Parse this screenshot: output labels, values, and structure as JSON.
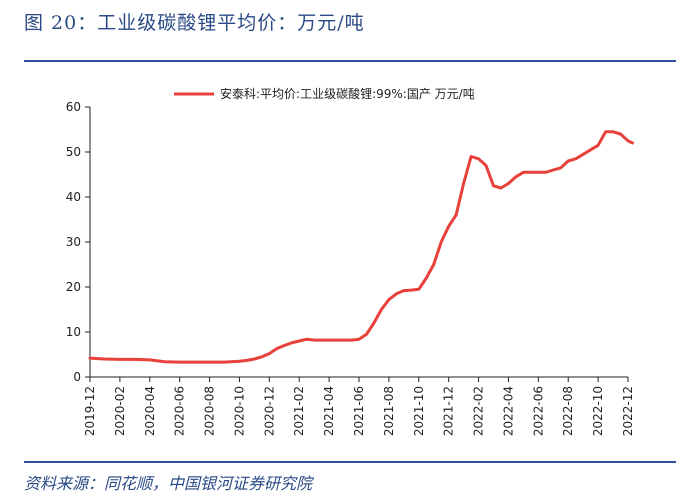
{
  "figure": {
    "title": "图 20：工业级碳酸锂平均价：万元/吨",
    "source": "资料来源：同花顺，中国银河证券研究院"
  },
  "colors": {
    "line": "#e8403a",
    "accent": "#2f4f9a",
    "axis": "#222222"
  },
  "chart_data": {
    "type": "line",
    "title": "",
    "xlabel": "",
    "ylabel": "",
    "ylim": [
      0,
      60
    ],
    "yticks": [
      "0",
      "10",
      "20",
      "30",
      "40",
      "50",
      "60"
    ],
    "xticks": [
      "2019-12",
      "2020-02",
      "2020-04",
      "2020-06",
      "2020-08",
      "2020-10",
      "2020-12",
      "2021-02",
      "2021-04",
      "2021-06",
      "2021-08",
      "2021-10",
      "2021-12",
      "2022-02",
      "2022-04",
      "2022-06",
      "2022-08",
      "2022-10",
      "2022-12"
    ],
    "grid": false,
    "legend": "top-center",
    "series": [
      {
        "name": "安泰科:平均价:工业级碳酸锂:99%:国产 万元/吨",
        "x": [
          0,
          0.5,
          1,
          2,
          3,
          4,
          5,
          6,
          7,
          8,
          9,
          10,
          10.5,
          11,
          11.5,
          12,
          12.5,
          13,
          13.5,
          14,
          14.5,
          15,
          15.5,
          16,
          16.5,
          17,
          17.5,
          18,
          18.5,
          19,
          19.5,
          20,
          20.5,
          21,
          21.5,
          22,
          22.5,
          23,
          23.5,
          24,
          24.5,
          25,
          25.5,
          26,
          26.5,
          27,
          27.5,
          28,
          28.5,
          29,
          29.5,
          30,
          30.5,
          31,
          31.5,
          32,
          32.5,
          33,
          33.5,
          34,
          34.5,
          35,
          35.5,
          36,
          36.3
        ],
        "y": [
          4.2,
          4.1,
          4.0,
          3.9,
          3.9,
          3.8,
          3.4,
          3.3,
          3.3,
          3.3,
          3.3,
          3.5,
          3.7,
          4.0,
          4.5,
          5.2,
          6.3,
          7.0,
          7.6,
          8.0,
          8.4,
          8.2,
          8.2,
          8.2,
          8.2,
          8.2,
          8.2,
          8.4,
          9.5,
          12.0,
          15.0,
          17.2,
          18.5,
          19.2,
          19.3,
          19.5,
          22.0,
          25.0,
          30.0,
          33.5,
          36.0,
          43.0,
          49.0,
          48.5,
          47.0,
          42.5,
          42.0,
          43.0,
          44.5,
          45.5,
          45.5,
          45.5,
          45.5,
          46.0,
          46.5,
          48.0,
          48.5,
          49.5,
          50.5,
          51.5,
          54.5,
          54.5,
          54.0,
          52.5,
          52.0
        ]
      }
    ]
  }
}
